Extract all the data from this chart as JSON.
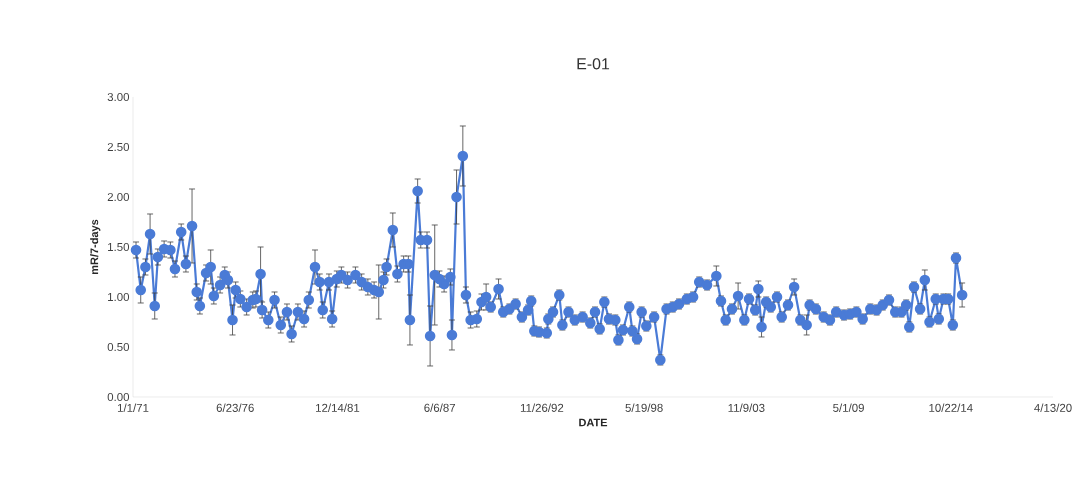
{
  "chart_data": {
    "type": "line",
    "title": "E-01",
    "xlabel": "DATE",
    "ylabel": "mR/7-days",
    "x": [
      "1971-03",
      "1971-06",
      "1971-09",
      "1971-12",
      "1972-03",
      "1972-05",
      "1972-09",
      "1973-01",
      "1973-04",
      "1973-08",
      "1973-11",
      "1974-03",
      "1974-06",
      "1974-08",
      "1974-12",
      "1975-03",
      "1975-05",
      "1975-09",
      "1975-12",
      "1976-02",
      "1976-05",
      "1976-07",
      "1976-10",
      "1977-02",
      "1977-06",
      "1977-08",
      "1977-11",
      "1977-12",
      "1978-04",
      "1978-08",
      "1978-12",
      "1979-04",
      "1979-07",
      "1979-11",
      "1980-03",
      "1980-06",
      "1980-10",
      "1981-01",
      "1981-03",
      "1981-07",
      "1981-09",
      "1981-12",
      "1982-03",
      "1982-07",
      "1982-12",
      "1983-04",
      "1983-08",
      "1983-12",
      "1984-03",
      "1984-06",
      "1984-08",
      "1984-12",
      "1985-03",
      "1985-07",
      "1985-10",
      "1985-11",
      "1986-04",
      "1986-06",
      "1986-10",
      "1986-12",
      "1987-03",
      "1987-06",
      "1987-09",
      "1988-01",
      "1988-02",
      "1988-05",
      "1988-09",
      "1988-11",
      "1989-02",
      "1989-06",
      "1989-09",
      "1989-12",
      "1990-03",
      "1990-08",
      "1990-11",
      "1991-03",
      "1991-07",
      "1991-11",
      "1992-03",
      "1992-05",
      "1992-07",
      "1992-10",
      "1993-03",
      "1993-04",
      "1993-07",
      "1993-11",
      "1994-01",
      "1994-05",
      "1994-09",
      "1995-02",
      "1995-07",
      "1995-10",
      "1996-01",
      "1996-04",
      "1996-07",
      "1996-11",
      "1997-01",
      "1997-04",
      "1997-08",
      "1997-10",
      "1998-01",
      "1998-04",
      "1998-07",
      "1998-12",
      "1999-04",
      "1999-08",
      "1999-12",
      "2000-04",
      "2000-09",
      "2001-01",
      "2001-05",
      "2001-10",
      "2002-04",
      "2002-07",
      "2002-10",
      "2003-02",
      "2003-06",
      "2003-10",
      "2004-01",
      "2004-05",
      "2004-07",
      "2004-09",
      "2004-12",
      "2005-03",
      "2005-07",
      "2005-10",
      "2006-02",
      "2006-06",
      "2006-10",
      "2007-02",
      "2007-04",
      "2007-08",
      "2008-01",
      "2008-05",
      "2008-09",
      "2009-02",
      "2009-06",
      "2009-10",
      "2010-02",
      "2010-07",
      "2010-11",
      "2011-03",
      "2011-07",
      "2011-11",
      "2012-03",
      "2012-06",
      "2012-08",
      "2012-11",
      "2013-03",
      "2013-06",
      "2013-09",
      "2014-01",
      "2014-03",
      "2014-06",
      "2014-09",
      "2014-12",
      "2015-02",
      "2015-06"
    ],
    "series": [
      {
        "color": "#4a7bd6",
        "values": [
          1.47,
          1.07,
          1.3,
          1.63,
          0.91,
          1.4,
          1.48,
          1.47,
          1.28,
          1.65,
          1.33,
          1.71,
          1.05,
          0.91,
          1.24,
          1.3,
          1.01,
          1.12,
          1.22,
          1.17,
          0.77,
          1.07,
          0.98,
          0.9,
          0.97,
          0.98,
          1.23,
          0.87,
          0.77,
          0.97,
          0.72,
          0.85,
          0.63,
          0.85,
          0.78,
          0.97,
          1.3,
          1.15,
          0.87,
          1.15,
          0.78,
          1.18,
          1.22,
          1.17,
          1.22,
          1.15,
          1.1,
          1.07,
          1.05,
          1.17,
          1.3,
          1.67,
          1.23,
          1.33,
          1.33,
          0.77,
          2.06,
          1.57,
          1.57,
          0.61,
          1.22,
          1.18,
          1.13,
          1.2,
          0.62,
          2.0,
          2.41,
          1.02,
          0.77,
          0.78,
          0.95,
          1.0,
          0.9,
          1.08,
          0.85,
          0.88,
          0.93,
          0.8,
          0.87,
          0.96,
          0.66,
          0.65,
          0.64,
          0.78,
          0.85,
          1.02,
          0.72,
          0.85,
          0.77,
          0.8,
          0.74,
          0.85,
          0.68,
          0.95,
          0.78,
          0.77,
          0.57,
          0.67,
          0.9,
          0.66,
          0.58,
          0.85,
          0.71,
          0.8,
          0.37,
          0.88,
          0.9,
          0.93,
          0.98,
          1.0,
          1.15,
          1.12,
          1.21,
          0.96,
          0.77,
          0.88,
          1.01,
          0.77,
          0.98,
          0.87,
          1.08,
          0.7,
          0.95,
          0.9,
          1.0,
          0.8,
          0.92,
          1.1,
          0.77,
          0.72,
          0.92,
          0.88,
          0.8,
          0.77,
          0.85,
          0.82,
          0.83,
          0.85,
          0.78,
          0.88,
          0.87,
          0.92,
          0.97,
          0.85,
          0.85,
          0.92,
          0.7,
          1.1,
          0.88,
          1.17,
          0.75,
          0.98,
          0.78,
          0.98,
          0.98,
          0.72,
          1.39,
          1.02
        ],
        "errors": [
          0.08,
          0.13,
          0.08,
          0.2,
          0.13,
          0.08,
          0.08,
          0.08,
          0.08,
          0.08,
          0.08,
          0.37,
          0.08,
          0.08,
          0.08,
          0.17,
          0.08,
          0.08,
          0.08,
          0.08,
          0.15,
          0.08,
          0.08,
          0.08,
          0.08,
          0.08,
          0.27,
          0.08,
          0.08,
          0.08,
          0.08,
          0.08,
          0.08,
          0.08,
          0.08,
          0.08,
          0.17,
          0.08,
          0.08,
          0.08,
          0.08,
          0.08,
          0.08,
          0.08,
          0.08,
          0.08,
          0.08,
          0.08,
          0.27,
          0.08,
          0.08,
          0.17,
          0.08,
          0.08,
          0.08,
          0.25,
          0.12,
          0.08,
          0.08,
          0.3,
          0.5,
          0.08,
          0.08,
          0.08,
          0.15,
          0.27,
          0.3,
          0.08,
          0.08,
          0.08,
          0.08,
          0.13,
          0.05,
          0.1,
          0.05,
          0.05,
          0.05,
          0.05,
          0.05,
          0.05,
          0.05,
          0.05,
          0.05,
          0.05,
          0.05,
          0.05,
          0.05,
          0.05,
          0.05,
          0.05,
          0.05,
          0.05,
          0.05,
          0.05,
          0.05,
          0.05,
          0.05,
          0.05,
          0.05,
          0.05,
          0.05,
          0.05,
          0.05,
          0.05,
          0.05,
          0.05,
          0.05,
          0.05,
          0.05,
          0.05,
          0.05,
          0.05,
          0.1,
          0.05,
          0.05,
          0.05,
          0.13,
          0.05,
          0.05,
          0.05,
          0.08,
          0.1,
          0.05,
          0.05,
          0.05,
          0.05,
          0.05,
          0.08,
          0.05,
          0.1,
          0.05,
          0.05,
          0.05,
          0.05,
          0.05,
          0.05,
          0.05,
          0.05,
          0.05,
          0.05,
          0.05,
          0.05,
          0.05,
          0.05,
          0.05,
          0.05,
          0.05,
          0.05,
          0.05,
          0.1,
          0.05,
          0.05,
          0.05,
          0.05,
          0.05,
          0.05,
          0.05,
          0.12
        ]
      }
    ],
    "xlim": [
      "1971-01-01",
      "2020-04-13"
    ],
    "xticks": [
      {
        "value": "1971-01-01",
        "label": "1/1/71"
      },
      {
        "value": "1976-06-23",
        "label": "6/23/76"
      },
      {
        "value": "1981-12-14",
        "label": "12/14/81"
      },
      {
        "value": "1987-06-06",
        "label": "6/6/87"
      },
      {
        "value": "1992-11-26",
        "label": "11/26/92"
      },
      {
        "value": "1998-05-19",
        "label": "5/19/98"
      },
      {
        "value": "2003-11-09",
        "label": "11/9/03"
      },
      {
        "value": "2009-05-01",
        "label": "5/1/09"
      },
      {
        "value": "2014-10-22",
        "label": "10/22/14"
      },
      {
        "value": "2020-04-13",
        "label": "4/13/20"
      }
    ],
    "ylim": [
      0,
      3
    ],
    "yticks": [
      {
        "value": 0,
        "label": "0.00"
      },
      {
        "value": 0.5,
        "label": "0.50"
      },
      {
        "value": 1,
        "label": "1.00"
      },
      {
        "value": 1.5,
        "label": "1.50"
      },
      {
        "value": 2,
        "label": "2.00"
      },
      {
        "value": 2.5,
        "label": "2.50"
      },
      {
        "value": 3,
        "label": "3.00"
      }
    ],
    "marker": "circle",
    "line_style": "solid"
  }
}
